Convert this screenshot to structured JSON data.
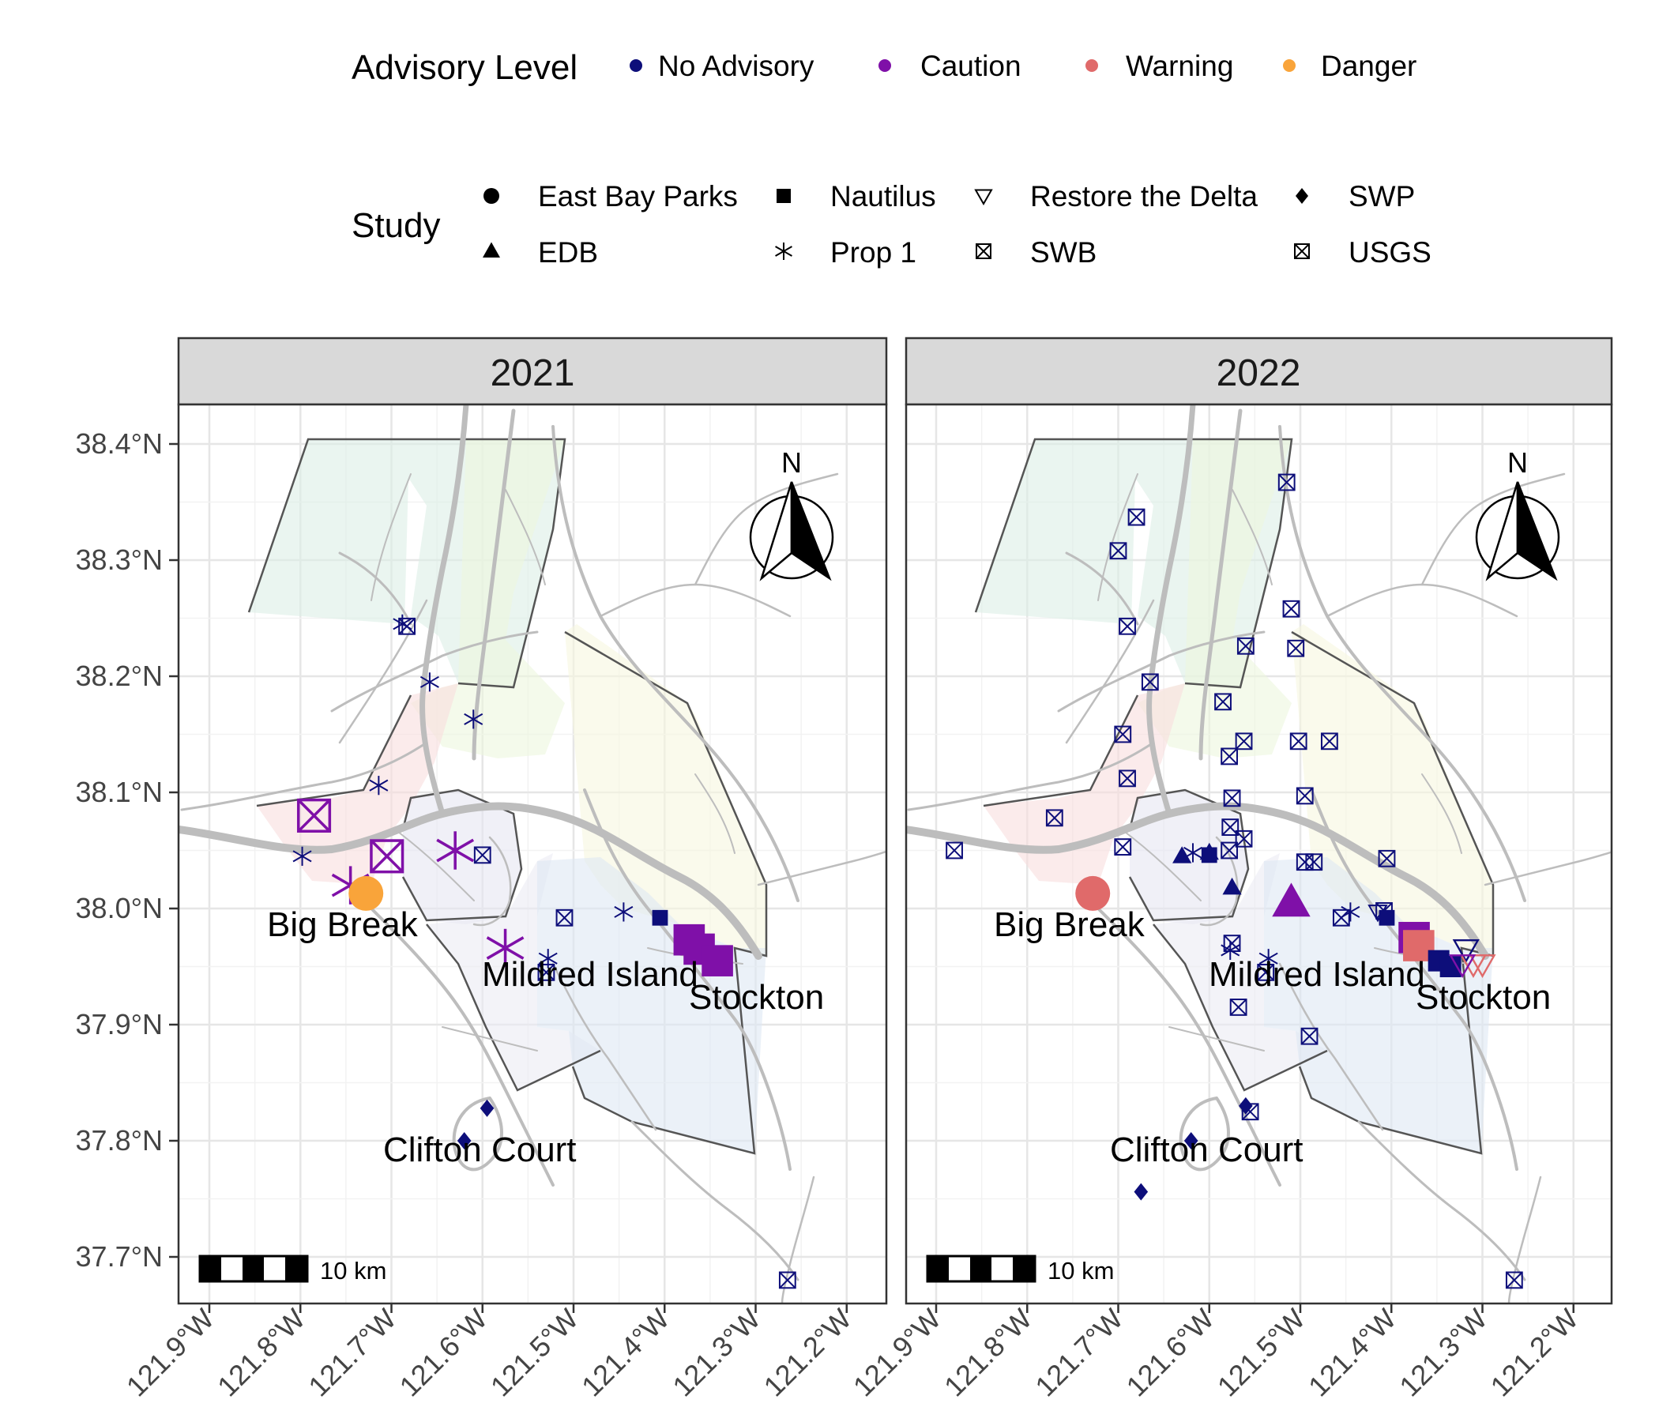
{
  "legend": {
    "advisory_title": "Advisory Level",
    "advisory_items": [
      {
        "label": "No Advisory",
        "color": "#0d0e7a"
      },
      {
        "label": "Caution",
        "color": "#7f10a8"
      },
      {
        "label": "Warning",
        "color": "#e06a6a"
      },
      {
        "label": "Danger",
        "color": "#f9a43a"
      }
    ],
    "study_title": "Study",
    "study_items": [
      {
        "label": "East Bay Parks",
        "shape": "circle"
      },
      {
        "label": "EDB",
        "shape": "triangle"
      },
      {
        "label": "Nautilus",
        "shape": "square"
      },
      {
        "label": "Prop 1",
        "shape": "asterisk"
      },
      {
        "label": "Restore the Delta",
        "shape": "triangle-down-open"
      },
      {
        "label": "SWB",
        "shape": "square-cross"
      },
      {
        "label": "SWP",
        "shape": "diamond"
      },
      {
        "label": "USGS",
        "shape": "square-cross"
      }
    ]
  },
  "map": {
    "lat_ticks": [
      "38.4°N",
      "38.3°N",
      "38.2°N",
      "38.1°N",
      "38.0°N",
      "37.9°N",
      "37.8°N",
      "37.7°N"
    ],
    "lon_ticks": [
      "121.9°W",
      "121.8°W",
      "121.7°W",
      "121.6°W",
      "121.5°W",
      "121.4°W",
      "121.3°W",
      "121.2°W"
    ],
    "north_label": "N",
    "scale_label": "10 km",
    "place_labels": [
      "Big Break",
      "Mildred Island",
      "Stockton",
      "Clifton Court"
    ],
    "region_colors": [
      "#dcefe6",
      "#edf6dd",
      "#f6f6df",
      "#f8dede",
      "#e6e6f2",
      "#ebebf3",
      "#dde7f4"
    ],
    "water_color": "#bdbdbd",
    "boundary_color": "#555555"
  },
  "panels": [
    {
      "title": "2021",
      "points": [
        {
          "lon": -121.785,
          "lat": 38.08,
          "study": "SWB",
          "level": "Caution",
          "size": "large"
        },
        {
          "lon": -121.705,
          "lat": 38.045,
          "study": "SWB",
          "level": "Caution",
          "size": "large"
        },
        {
          "lon": -121.745,
          "lat": 38.02,
          "study": "Prop 1",
          "level": "Caution",
          "size": "large"
        },
        {
          "lon": -121.728,
          "lat": 38.013,
          "study": "East Bay Parks",
          "level": "Danger",
          "size": "large"
        },
        {
          "lon": -121.63,
          "lat": 38.05,
          "study": "Prop 1",
          "level": "Caution",
          "size": "large"
        },
        {
          "lon": -121.575,
          "lat": 37.966,
          "study": "Prop 1",
          "level": "Caution",
          "size": "large"
        },
        {
          "lon": -121.373,
          "lat": 37.973,
          "study": "Nautilus",
          "level": "Caution",
          "size": "large"
        },
        {
          "lon": -121.362,
          "lat": 37.965,
          "study": "Nautilus",
          "level": "Caution",
          "size": "large"
        },
        {
          "lon": -121.342,
          "lat": 37.955,
          "study": "Nautilus",
          "level": "Caution",
          "size": "large"
        },
        {
          "lon": -121.798,
          "lat": 38.045,
          "study": "Prop 1",
          "level": "No Advisory",
          "size": "small"
        },
        {
          "lon": -121.714,
          "lat": 38.106,
          "study": "Prop 1",
          "level": "No Advisory",
          "size": "small"
        },
        {
          "lon": -121.658,
          "lat": 38.195,
          "study": "Prop 1",
          "level": "No Advisory",
          "size": "small"
        },
        {
          "lon": -121.61,
          "lat": 38.163,
          "study": "Prop 1",
          "level": "No Advisory",
          "size": "small"
        },
        {
          "lon": -121.688,
          "lat": 38.245,
          "study": "Prop 1",
          "level": "No Advisory",
          "size": "small"
        },
        {
          "lon": -121.683,
          "lat": 38.243,
          "study": "SWB",
          "level": "No Advisory",
          "size": "small"
        },
        {
          "lon": -121.6,
          "lat": 38.046,
          "study": "SWB",
          "level": "No Advisory",
          "size": "small"
        },
        {
          "lon": -121.528,
          "lat": 37.957,
          "study": "Prop 1",
          "level": "No Advisory",
          "size": "small"
        },
        {
          "lon": -121.53,
          "lat": 37.945,
          "study": "SWB",
          "level": "No Advisory",
          "size": "small"
        },
        {
          "lon": -121.51,
          "lat": 37.992,
          "study": "SWB",
          "level": "No Advisory",
          "size": "small"
        },
        {
          "lon": -121.445,
          "lat": 37.997,
          "study": "Prop 1",
          "level": "No Advisory",
          "size": "small"
        },
        {
          "lon": -121.405,
          "lat": 37.992,
          "study": "Nautilus",
          "level": "No Advisory",
          "size": "small"
        },
        {
          "lon": -121.595,
          "lat": 37.828,
          "study": "SWP",
          "level": "No Advisory",
          "size": "small"
        },
        {
          "lon": -121.62,
          "lat": 37.8,
          "study": "SWP",
          "level": "No Advisory",
          "size": "small"
        },
        {
          "lon": -121.265,
          "lat": 37.68,
          "study": "USGS",
          "level": "No Advisory",
          "size": "small"
        }
      ]
    },
    {
      "title": "2022",
      "points": [
        {
          "lon": -121.88,
          "lat": 38.05,
          "study": "SWB",
          "level": "No Advisory",
          "size": "small"
        },
        {
          "lon": -121.77,
          "lat": 38.078,
          "study": "SWB",
          "level": "No Advisory",
          "size": "small"
        },
        {
          "lon": -121.728,
          "lat": 38.013,
          "study": "East Bay Parks",
          "level": "Warning",
          "size": "large"
        },
        {
          "lon": -121.7,
          "lat": 38.308,
          "study": "SWB",
          "level": "No Advisory",
          "size": "small"
        },
        {
          "lon": -121.68,
          "lat": 38.337,
          "study": "SWB",
          "level": "No Advisory",
          "size": "small"
        },
        {
          "lon": -121.69,
          "lat": 38.243,
          "study": "SWB",
          "level": "No Advisory",
          "size": "small"
        },
        {
          "lon": -121.665,
          "lat": 38.195,
          "study": "SWB",
          "level": "No Advisory",
          "size": "small"
        },
        {
          "lon": -121.695,
          "lat": 38.15,
          "study": "SWB",
          "level": "No Advisory",
          "size": "small"
        },
        {
          "lon": -121.69,
          "lat": 38.112,
          "study": "SWB",
          "level": "No Advisory",
          "size": "small"
        },
        {
          "lon": -121.695,
          "lat": 38.053,
          "study": "SWB",
          "level": "No Advisory",
          "size": "small"
        },
        {
          "lon": -121.515,
          "lat": 38.367,
          "study": "SWB",
          "level": "No Advisory",
          "size": "small"
        },
        {
          "lon": -121.51,
          "lat": 38.258,
          "study": "SWB",
          "level": "No Advisory",
          "size": "small"
        },
        {
          "lon": -121.56,
          "lat": 38.226,
          "study": "SWB",
          "level": "No Advisory",
          "size": "small"
        },
        {
          "lon": -121.505,
          "lat": 38.224,
          "study": "SWB",
          "level": "No Advisory",
          "size": "small"
        },
        {
          "lon": -121.585,
          "lat": 38.178,
          "study": "SWB",
          "level": "No Advisory",
          "size": "small"
        },
        {
          "lon": -121.562,
          "lat": 38.144,
          "study": "SWB",
          "level": "No Advisory",
          "size": "small"
        },
        {
          "lon": -121.578,
          "lat": 38.131,
          "study": "SWB",
          "level": "No Advisory",
          "size": "small"
        },
        {
          "lon": -121.502,
          "lat": 38.144,
          "study": "SWB",
          "level": "No Advisory",
          "size": "small"
        },
        {
          "lon": -121.468,
          "lat": 38.144,
          "study": "SWB",
          "level": "No Advisory",
          "size": "small"
        },
        {
          "lon": -121.495,
          "lat": 38.097,
          "study": "SWB",
          "level": "No Advisory",
          "size": "small"
        },
        {
          "lon": -121.575,
          "lat": 38.095,
          "study": "SWB",
          "level": "No Advisory",
          "size": "small"
        },
        {
          "lon": -121.577,
          "lat": 38.07,
          "study": "SWB",
          "level": "No Advisory",
          "size": "small"
        },
        {
          "lon": -121.562,
          "lat": 38.06,
          "study": "SWB",
          "level": "No Advisory",
          "size": "small"
        },
        {
          "lon": -121.578,
          "lat": 38.05,
          "study": "SWB",
          "level": "No Advisory",
          "size": "small"
        },
        {
          "lon": -121.63,
          "lat": 38.045,
          "study": "EDB",
          "level": "No Advisory",
          "size": "small"
        },
        {
          "lon": -121.6,
          "lat": 38.048,
          "study": "EDB",
          "level": "No Advisory",
          "size": "small"
        },
        {
          "lon": -121.575,
          "lat": 38.018,
          "study": "EDB",
          "level": "No Advisory",
          "size": "small"
        },
        {
          "lon": -121.6,
          "lat": 38.046,
          "study": "Nautilus",
          "level": "No Advisory",
          "size": "small"
        },
        {
          "lon": -121.618,
          "lat": 38.048,
          "study": "Prop 1",
          "level": "No Advisory",
          "size": "small"
        },
        {
          "lon": -121.51,
          "lat": 38.005,
          "study": "EDB",
          "level": "Caution",
          "size": "large"
        },
        {
          "lon": -121.495,
          "lat": 38.04,
          "study": "SWB",
          "level": "No Advisory",
          "size": "small"
        },
        {
          "lon": -121.485,
          "lat": 38.04,
          "study": "SWB",
          "level": "No Advisory",
          "size": "small"
        },
        {
          "lon": -121.405,
          "lat": 38.043,
          "study": "SWB",
          "level": "No Advisory",
          "size": "small"
        },
        {
          "lon": -121.445,
          "lat": 37.997,
          "study": "Prop 1",
          "level": "No Advisory",
          "size": "small"
        },
        {
          "lon": -121.455,
          "lat": 37.992,
          "study": "SWB",
          "level": "No Advisory",
          "size": "small"
        },
        {
          "lon": -121.415,
          "lat": 37.997,
          "study": "Restore the Delta",
          "level": "No Advisory",
          "size": "small"
        },
        {
          "lon": -121.408,
          "lat": 37.998,
          "study": "SWB",
          "level": "No Advisory",
          "size": "small"
        },
        {
          "lon": -121.405,
          "lat": 37.992,
          "study": "Nautilus",
          "level": "No Advisory",
          "size": "small"
        },
        {
          "lon": -121.375,
          "lat": 37.975,
          "study": "Nautilus",
          "level": "Caution",
          "size": "large"
        },
        {
          "lon": -121.37,
          "lat": 37.968,
          "study": "Nautilus",
          "level": "Warning",
          "size": "large"
        },
        {
          "lon": -121.348,
          "lat": 37.955,
          "study": "Nautilus",
          "level": "No Advisory",
          "size": "medium"
        },
        {
          "lon": -121.335,
          "lat": 37.95,
          "study": "Nautilus",
          "level": "No Advisory",
          "size": "medium"
        },
        {
          "lon": -121.318,
          "lat": 37.965,
          "study": "Restore the Delta",
          "level": "No Advisory",
          "size": "medium"
        },
        {
          "lon": -121.31,
          "lat": 37.952,
          "study": "Restore the Delta",
          "level": "Warning",
          "size": "medium"
        },
        {
          "lon": -121.3,
          "lat": 37.952,
          "study": "Restore the Delta",
          "level": "Warning",
          "size": "medium"
        },
        {
          "lon": -121.322,
          "lat": 37.952,
          "study": "Restore the Delta",
          "level": "Caution",
          "size": "medium"
        },
        {
          "lon": -121.575,
          "lat": 37.97,
          "study": "SWB",
          "level": "No Advisory",
          "size": "small"
        },
        {
          "lon": -121.577,
          "lat": 37.964,
          "study": "Prop 1",
          "level": "No Advisory",
          "size": "small"
        },
        {
          "lon": -121.535,
          "lat": 37.957,
          "study": "Prop 1",
          "level": "No Advisory",
          "size": "small"
        },
        {
          "lon": -121.538,
          "lat": 37.945,
          "study": "SWB",
          "level": "No Advisory",
          "size": "small"
        },
        {
          "lon": -121.568,
          "lat": 37.915,
          "study": "SWB",
          "level": "No Advisory",
          "size": "small"
        },
        {
          "lon": -121.49,
          "lat": 37.89,
          "study": "SWB",
          "level": "No Advisory",
          "size": "small"
        },
        {
          "lon": -121.56,
          "lat": 37.83,
          "study": "SWP",
          "level": "No Advisory",
          "size": "small"
        },
        {
          "lon": -121.555,
          "lat": 37.825,
          "study": "SWB",
          "level": "No Advisory",
          "size": "small"
        },
        {
          "lon": -121.62,
          "lat": 37.8,
          "study": "SWP",
          "level": "No Advisory",
          "size": "small"
        },
        {
          "lon": -121.675,
          "lat": 37.756,
          "study": "SWP",
          "level": "No Advisory",
          "size": "small"
        },
        {
          "lon": -121.265,
          "lat": 37.68,
          "study": "USGS",
          "level": "No Advisory",
          "size": "small"
        }
      ]
    }
  ]
}
